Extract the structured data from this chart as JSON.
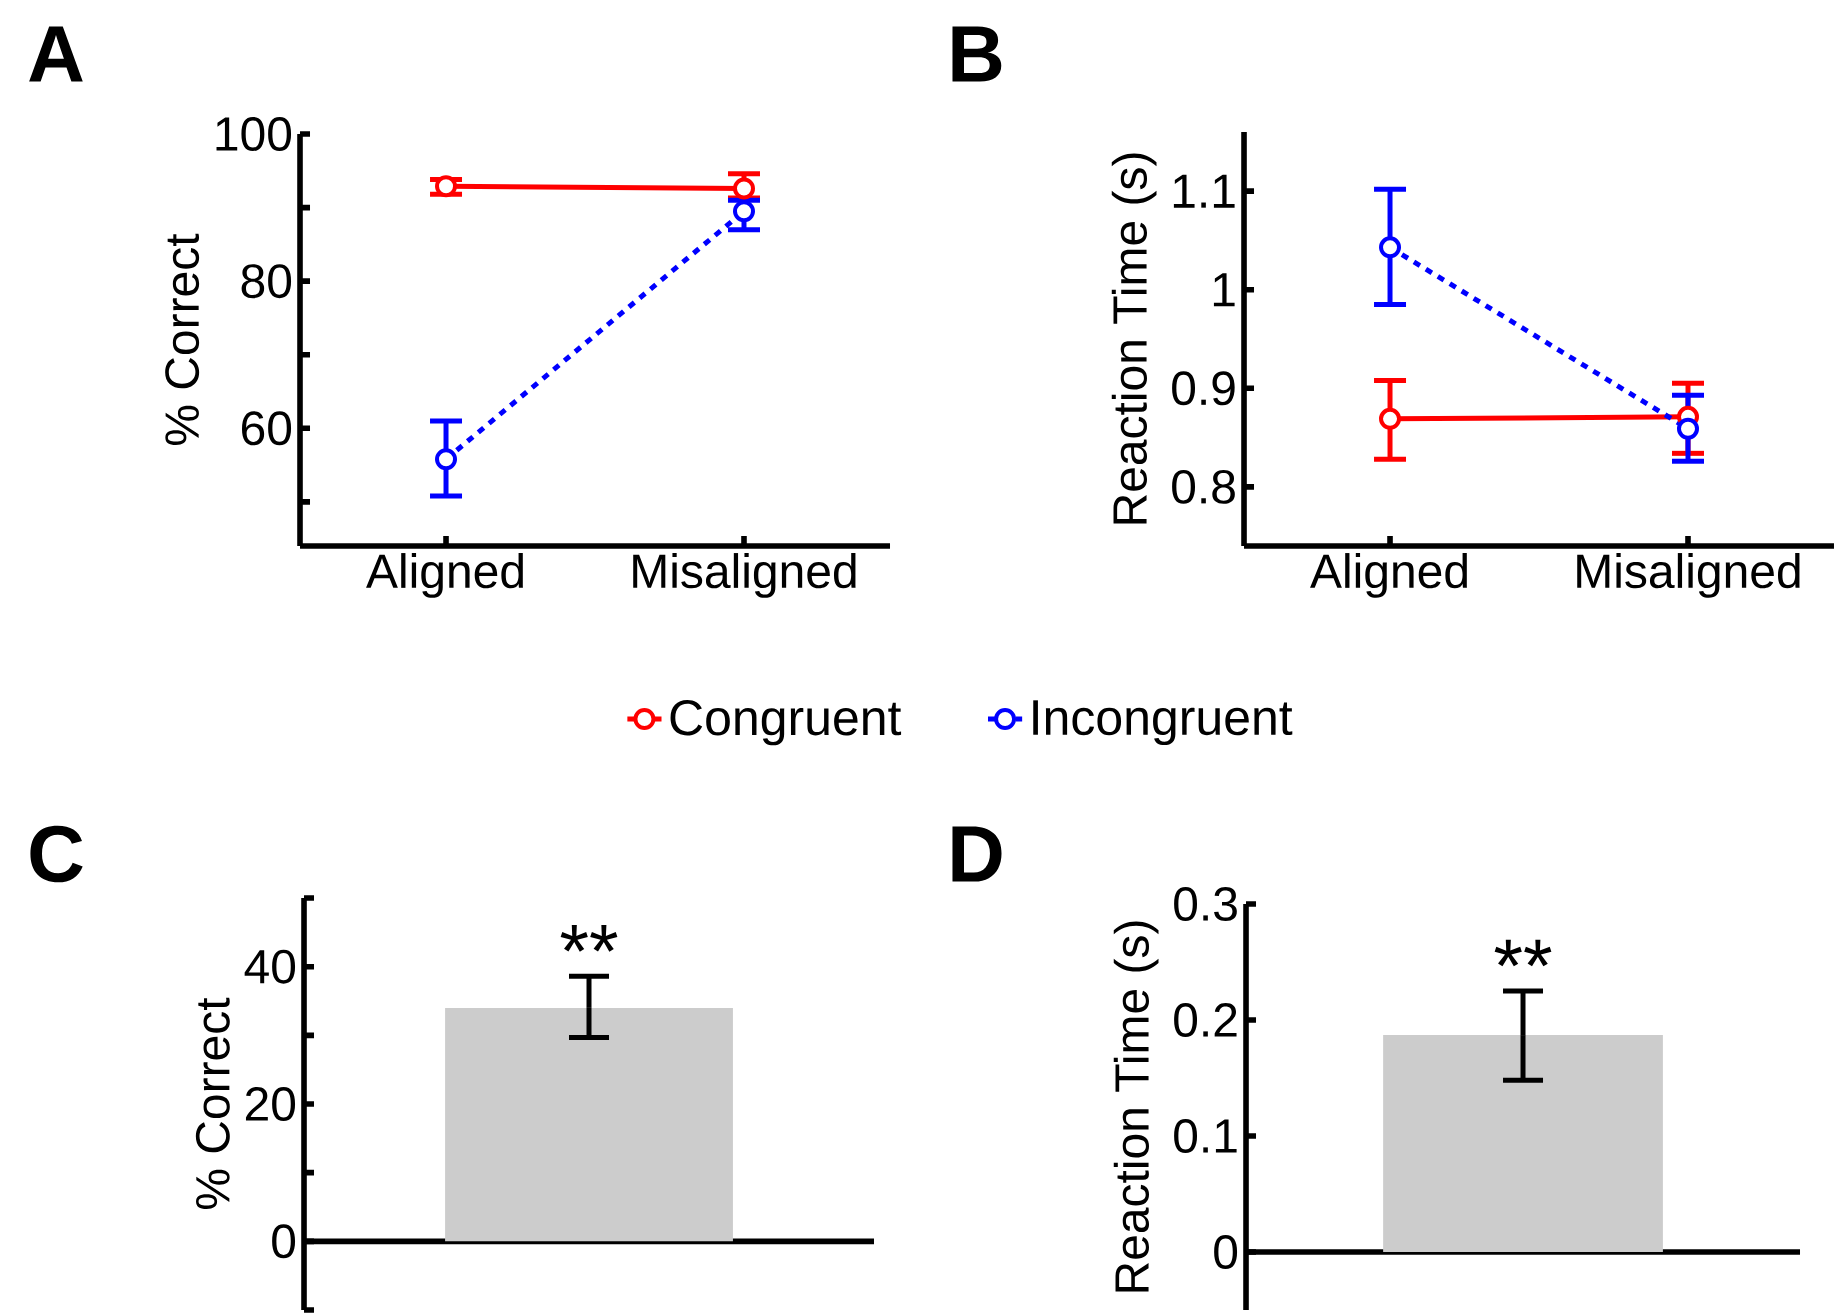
{
  "chart_data": [
    {
      "type": "line",
      "title": "A",
      "ylabel": "% Correct",
      "categories": [
        "Aligned",
        "Misaligned"
      ],
      "ylim": [
        44,
        100
      ],
      "yticks": [
        {
          "value": 50,
          "label": null
        },
        60,
        {
          "value": 70,
          "label": null
        },
        80,
        {
          "value": 90,
          "label": null
        },
        100
      ],
      "legend": "bottom",
      "series": [
        {
          "name": "Congruent",
          "color": "#ff0000",
          "values": [
            92.9,
            92.6
          ],
          "errors": [
            [
              91.8,
              93.8
            ],
            [
              91.3,
              94.6
            ]
          ],
          "marker": "circle",
          "line_style": "solid"
        },
        {
          "name": "Incongruent",
          "color": "#0000ff",
          "values": [
            55.8,
            89.5
          ],
          "errors": [
            [
              50.8,
              61
            ],
            [
              87,
              91
            ]
          ],
          "marker": "circle",
          "line_style": "dotted"
        }
      ]
    },
    {
      "type": "line",
      "title": "B",
      "ylabel": "Reaction Time (s)",
      "categories": [
        "Aligned",
        "Misaligned"
      ],
      "ylim": [
        0.74,
        1.16
      ],
      "yticks": [
        0.8,
        0.9,
        1,
        1.1
      ],
      "series": [
        {
          "color": "#ff0000",
          "values": [
            0.869,
            0.871
          ],
          "errors": [
            [
              0.828,
              0.908
            ],
            [
              0.834,
              0.905
            ]
          ],
          "marker": "circle",
          "line_style": "solid"
        },
        {
          "color": "#0000ff",
          "values": [
            1.043,
            0.859
          ],
          "errors": [
            [
              0.985,
              1.102
            ],
            [
              0.826,
              0.893
            ]
          ],
          "marker": "circle",
          "line_style": "dotted"
        }
      ]
    },
    {
      "type": "bar",
      "title": "C",
      "ylabel": "% Correct",
      "categories": [
        null
      ],
      "values": [
        34
      ],
      "errors": [
        [
          29.7,
          38.6
        ]
      ],
      "color": "#cccccc",
      "ylim": [
        -10,
        50
      ],
      "yticks": [
        {
          "value": -10,
          "label": null
        },
        0,
        {
          "value": 10,
          "label": null
        },
        20,
        {
          "value": 30,
          "label": null
        },
        40,
        {
          "value": 50,
          "label": null
        }
      ],
      "annotations": [
        "**"
      ]
    },
    {
      "type": "bar",
      "title": "D",
      "ylabel": "Reaction Time (s)",
      "categories": [
        null
      ],
      "values": [
        0.187
      ],
      "errors": [
        [
          0.148,
          0.225
        ]
      ],
      "color": "#cccccc",
      "ylim": [
        -0.05,
        0.3
      ],
      "yticks": [
        0,
        0.1,
        0.2,
        0.3
      ],
      "annotations": [
        "**"
      ]
    }
  ]
}
